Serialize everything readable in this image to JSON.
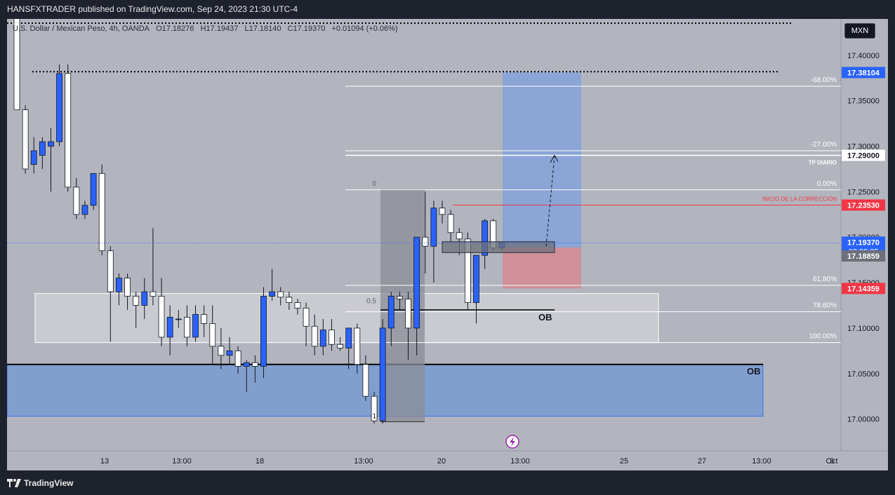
{
  "header": {
    "text": "HANSFXTRADER published on TradingView.com, Sep 24, 2023 21:30 UTC-4"
  },
  "footer": {
    "brand": "TradingView"
  },
  "symbol": {
    "name": "U.S. Dollar / Mexican Peso, 4h, OANDA",
    "open": "O17.18276",
    "high": "H17.19437",
    "low": "L17.18140",
    "close": "C17.19370",
    "change": "+0.01094 (+0.06%)"
  },
  "currency": "MXN",
  "colors": {
    "background": "#b2b5be",
    "bull": "#2962ff",
    "bear": "#ffffff",
    "zone": "#7b9ccf",
    "loss": "#d28c96",
    "fib_rect": "#8a8d96"
  },
  "chart_data": {
    "type": "candlestick",
    "ylim": [
      16.965,
      17.44
    ],
    "y_ticks": [
      "17.40000",
      "17.35000",
      "17.30000",
      "17.25000",
      "17.20000",
      "17.15000",
      "17.10000",
      "17.05000",
      "17.00000"
    ],
    "x_ticks": [
      "13",
      "13:00",
      "18",
      "13:00",
      "20",
      "13:00",
      "25",
      "27",
      "13:00",
      "Oct",
      "3"
    ],
    "candles": [
      [
        17.5,
        17.52,
        17.34,
        17.34
      ],
      [
        17.34,
        17.345,
        17.27,
        17.275
      ],
      [
        17.28,
        17.31,
        17.27,
        17.295
      ],
      [
        17.29,
        17.31,
        17.275,
        17.305
      ],
      [
        17.3,
        17.32,
        17.25,
        17.305
      ],
      [
        17.305,
        17.39,
        17.3,
        17.38
      ],
      [
        17.38,
        17.39,
        17.25,
        17.255
      ],
      [
        17.255,
        17.265,
        17.22,
        17.225
      ],
      [
        17.225,
        17.24,
        17.22,
        17.235
      ],
      [
        17.235,
        17.27,
        17.23,
        17.27
      ],
      [
        17.27,
        17.28,
        17.18,
        17.185
      ],
      [
        17.185,
        17.19,
        17.085,
        17.14
      ],
      [
        17.14,
        17.16,
        17.125,
        17.155
      ],
      [
        17.155,
        17.16,
        17.12,
        17.135
      ],
      [
        17.135,
        17.14,
        17.1,
        17.125
      ],
      [
        17.125,
        17.155,
        17.11,
        17.14
      ],
      [
        17.14,
        17.21,
        17.125,
        17.135
      ],
      [
        17.135,
        17.155,
        17.08,
        17.09
      ],
      [
        17.09,
        17.125,
        17.07,
        17.112
      ],
      [
        17.11,
        17.12,
        17.1,
        17.11
      ],
      [
        17.112,
        17.125,
        17.08,
        17.09
      ],
      [
        17.09,
        17.125,
        17.085,
        17.115
      ],
      [
        17.115,
        17.125,
        17.09,
        17.105
      ],
      [
        17.105,
        17.125,
        17.06,
        17.08
      ],
      [
        17.08,
        17.1,
        17.055,
        17.07
      ],
      [
        17.07,
        17.09,
        17.06,
        17.075
      ],
      [
        17.075,
        17.08,
        17.05,
        17.058
      ],
      [
        17.058,
        17.065,
        17.03,
        17.062
      ],
      [
        17.062,
        17.07,
        17.04,
        17.058
      ],
      [
        17.058,
        17.145,
        17.045,
        17.135
      ],
      [
        17.135,
        17.165,
        17.13,
        17.14
      ],
      [
        17.14,
        17.145,
        17.125,
        17.134
      ],
      [
        17.134,
        17.14,
        17.12,
        17.128
      ],
      [
        17.128,
        17.132,
        17.115,
        17.122
      ],
      [
        17.122,
        17.128,
        17.08,
        17.102
      ],
      [
        17.102,
        17.115,
        17.07,
        17.08
      ],
      [
        17.08,
        17.11,
        17.07,
        17.098
      ],
      [
        17.098,
        17.11,
        17.075,
        17.082
      ],
      [
        17.082,
        17.09,
        17.075,
        17.078
      ],
      [
        17.078,
        17.1,
        17.055,
        17.1
      ],
      [
        17.1,
        17.105,
        17.05,
        17.06
      ],
      [
        17.06,
        17.07,
        17.02,
        17.025
      ],
      [
        17.025,
        17.03,
        16.995,
        16.998
      ],
      [
        16.998,
        17.11,
        16.995,
        17.1
      ],
      [
        17.1,
        17.14,
        17.08,
        17.135
      ],
      [
        17.135,
        17.14,
        17.12,
        17.132
      ],
      [
        17.132,
        17.14,
        17.065,
        17.1
      ],
      [
        17.1,
        17.2,
        17.07,
        17.2
      ],
      [
        17.2,
        17.25,
        17.16,
        17.19
      ],
      [
        17.19,
        17.24,
        17.15,
        17.232
      ],
      [
        17.232,
        17.24,
        17.215,
        17.225
      ],
      [
        17.225,
        17.23,
        17.195,
        17.205
      ],
      [
        17.205,
        17.21,
        17.18,
        17.198
      ],
      [
        17.198,
        17.205,
        17.12,
        17.128
      ],
      [
        17.128,
        17.18,
        17.105,
        17.18
      ],
      [
        17.18,
        17.22,
        17.165,
        17.218
      ],
      [
        17.218,
        17.22,
        17.185,
        17.188
      ],
      [
        17.188,
        17.195,
        17.185,
        17.194
      ]
    ],
    "prices": {
      "current": "17.19370",
      "countdown": "03:29:35",
      "entry": "17.18859",
      "stop": "17.14359",
      "target": "17.38104",
      "tp": "17.29000",
      "correction": "17.23530"
    },
    "fib_levels": [
      {
        "label": "-68.00%",
        "value": 17.366
      },
      {
        "label": "-27.00%",
        "value": 17.295
      },
      {
        "label": "0.00%",
        "value": 17.252
      },
      {
        "label": "61.80%",
        "value": 17.147
      },
      {
        "label": "78.60%",
        "value": 17.118
      },
      {
        "label": "100.00%",
        "value": 17.084
      }
    ],
    "annotations": {
      "tp_diario": "TP DIARIO",
      "inicio": "INICIO DE LA CORRECCIÓN",
      "ob_upper": "OB",
      "ob_lower": "OB",
      "fib_0": "0",
      "fib_05": "0.5",
      "fib_1": "1"
    }
  }
}
